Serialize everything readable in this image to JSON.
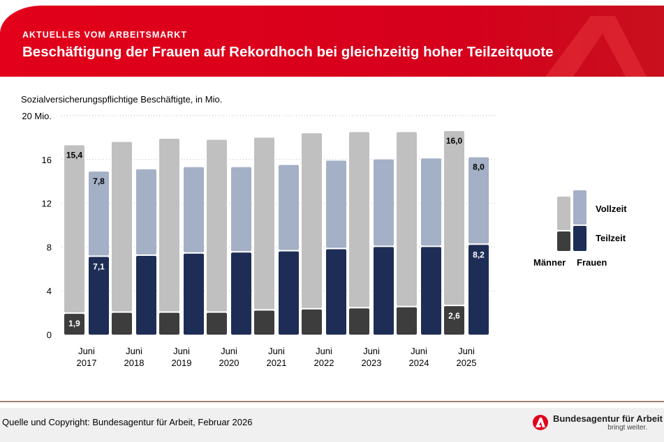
{
  "header": {
    "kicker": "AKTUELLES VOM ARBEITSMARKT",
    "title": "Beschäftigung der Frauen auf Rekordhoch bei gleichzeitig hoher Teilzeitquote"
  },
  "footer": {
    "source": "Quelle und Copyright: Bundesagentur für Arbeit, Februar 2026",
    "brand_name": "Bundesagentur für Arbeit",
    "brand_tagline": "bringt weiter."
  },
  "colors": {
    "brand_red": "#e2001a",
    "maenner_teilzeit": "#3d3d3d",
    "maenner_vollzeit": "#c0c0c0",
    "frauen_teilzeit": "#1e2d55",
    "frauen_vollzeit": "#a4b0c6"
  },
  "chart_data": {
    "type": "bar",
    "stacked": true,
    "ylabel": "Sozialversicherungspflichtige Beschäftigte, in Mio.",
    "ylim": [
      0,
      20
    ],
    "yticks": [
      "0",
      "4",
      "8",
      "12",
      "16",
      "20 Mio."
    ],
    "grid": true,
    "categories": [
      [
        "Juni",
        "2017"
      ],
      [
        "Juni",
        "2018"
      ],
      [
        "Juni",
        "2019"
      ],
      [
        "Juni",
        "2020"
      ],
      [
        "Juni",
        "2021"
      ],
      [
        "Juni",
        "2022"
      ],
      [
        "Juni",
        "2023"
      ],
      [
        "Juni",
        "2024"
      ],
      [
        "Juni",
        "2025"
      ]
    ],
    "groups": [
      "Männer",
      "Frauen"
    ],
    "stack_parts": [
      "Teilzeit",
      "Vollzeit"
    ],
    "series": [
      {
        "group": "Männer",
        "part": "Teilzeit",
        "values": [
          1.9,
          2.0,
          2.0,
          2.0,
          2.2,
          2.3,
          2.4,
          2.5,
          2.6
        ]
      },
      {
        "group": "Männer",
        "part": "Vollzeit",
        "values": [
          15.4,
          15.6,
          15.9,
          15.8,
          15.8,
          16.1,
          16.1,
          16.0,
          16.0
        ]
      },
      {
        "group": "Frauen",
        "part": "Teilzeit",
        "values": [
          7.1,
          7.2,
          7.4,
          7.5,
          7.6,
          7.8,
          8.0,
          8.0,
          8.2
        ]
      },
      {
        "group": "Frauen",
        "part": "Vollzeit",
        "values": [
          7.8,
          7.9,
          7.9,
          7.8,
          7.9,
          8.1,
          8.0,
          8.1,
          8.0
        ]
      }
    ],
    "data_labels": [
      {
        "series": 0,
        "index": 0,
        "text": "1,9"
      },
      {
        "series": 1,
        "index": 0,
        "text": "15,4"
      },
      {
        "series": 2,
        "index": 0,
        "text": "7,1"
      },
      {
        "series": 3,
        "index": 0,
        "text": "7,8"
      },
      {
        "series": 0,
        "index": 8,
        "text": "2,6"
      },
      {
        "series": 1,
        "index": 8,
        "text": "16,0"
      },
      {
        "series": 2,
        "index": 8,
        "text": "8,2"
      },
      {
        "series": 3,
        "index": 8,
        "text": "8,0"
      }
    ],
    "legend": {
      "placement": "right",
      "vollzeit": "Vollzeit",
      "teilzeit": "Teilzeit",
      "maenner": "Männer",
      "frauen": "Frauen"
    }
  }
}
